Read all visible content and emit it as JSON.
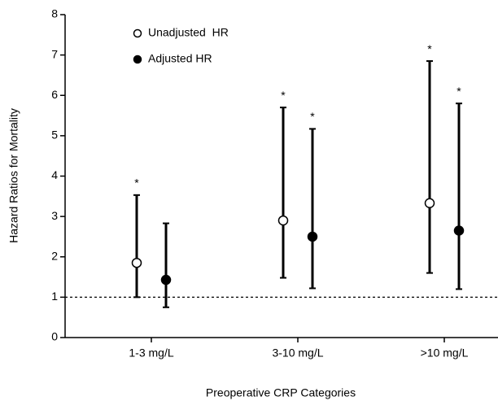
{
  "chart_data": {
    "type": "errorbar",
    "x_label": "Preoperative CRP Categories",
    "y_label": "Hazard Ratios for Mortality",
    "categories": [
      "1-3 mg/L",
      "3-10 mg/L",
      ">10 mg/L"
    ],
    "series": [
      {
        "name": "Unadjusted  HR",
        "marker": "open",
        "color": "#000000",
        "values": [
          1.85,
          2.9,
          3.33
        ],
        "lower": [
          1.0,
          1.48,
          1.6
        ],
        "upper": [
          3.53,
          5.7,
          6.85
        ],
        "annotations": [
          "*",
          "*",
          "*"
        ]
      },
      {
        "name": "Adjusted HR",
        "marker": "filled",
        "color": "#000000",
        "values": [
          1.43,
          2.5,
          2.65
        ],
        "lower": [
          0.75,
          1.22,
          1.2
        ],
        "upper": [
          2.83,
          5.17,
          5.8
        ],
        "annotations": [
          "",
          "*",
          "*"
        ]
      }
    ],
    "reference_line": 1,
    "ylim": [
      0,
      8
    ],
    "yticks": [
      0,
      1,
      2,
      3,
      4,
      5,
      6,
      7,
      8
    ]
  }
}
